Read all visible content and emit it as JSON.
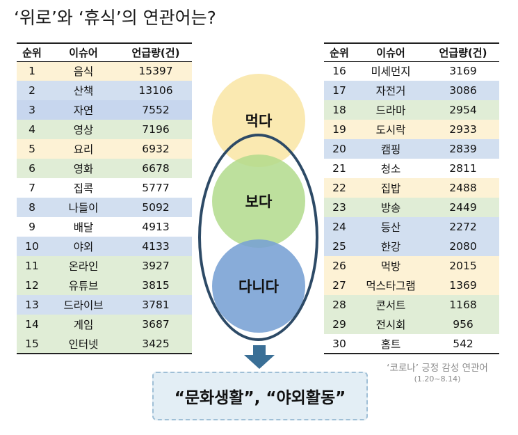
{
  "title": "‘위로’와 ‘휴식’의 연관어는?",
  "table_headers": {
    "rank": "순위",
    "issue": "이슈어",
    "mentions": "언급량(건)"
  },
  "left_rows": [
    {
      "rank": "1",
      "issue": "음식",
      "mentions": "15397",
      "color": "#fdf2d5"
    },
    {
      "rank": "2",
      "issue": "산책",
      "mentions": "13106",
      "color": "#d2dff0"
    },
    {
      "rank": "3",
      "issue": "자연",
      "mentions": "7552",
      "color": "#c7d6ee"
    },
    {
      "rank": "4",
      "issue": "영상",
      "mentions": "7196",
      "color": "#e0edd6"
    },
    {
      "rank": "5",
      "issue": "요리",
      "mentions": "6932",
      "color": "#fdf2d5"
    },
    {
      "rank": "6",
      "issue": "영화",
      "mentions": "6678",
      "color": "#e0edd6"
    },
    {
      "rank": "7",
      "issue": "집콕",
      "mentions": "5777",
      "color": "#ffffff"
    },
    {
      "rank": "8",
      "issue": "나들이",
      "mentions": "5092",
      "color": "#d2dff0"
    },
    {
      "rank": "9",
      "issue": "배달",
      "mentions": "4913",
      "color": "#ffffff"
    },
    {
      "rank": "10",
      "issue": "야외",
      "mentions": "4133",
      "color": "#d2dff0"
    },
    {
      "rank": "11",
      "issue": "온라인",
      "mentions": "3927",
      "color": "#e0edd6"
    },
    {
      "rank": "12",
      "issue": "유튜브",
      "mentions": "3815",
      "color": "#e0edd6"
    },
    {
      "rank": "13",
      "issue": "드라이브",
      "mentions": "3781",
      "color": "#d2dff0"
    },
    {
      "rank": "14",
      "issue": "게임",
      "mentions": "3687",
      "color": "#e0edd6"
    },
    {
      "rank": "15",
      "issue": "인터넷",
      "mentions": "3425",
      "color": "#e0edd6"
    }
  ],
  "right_rows": [
    {
      "rank": "16",
      "issue": "미세먼지",
      "mentions": "3169",
      "color": "#ffffff"
    },
    {
      "rank": "17",
      "issue": "자전거",
      "mentions": "3086",
      "color": "#d2dff0"
    },
    {
      "rank": "18",
      "issue": "드라마",
      "mentions": "2954",
      "color": "#e0edd6"
    },
    {
      "rank": "19",
      "issue": "도시락",
      "mentions": "2933",
      "color": "#fdf2d5"
    },
    {
      "rank": "20",
      "issue": "캠핑",
      "mentions": "2839",
      "color": "#d2dff0"
    },
    {
      "rank": "21",
      "issue": "청소",
      "mentions": "2811",
      "color": "#ffffff"
    },
    {
      "rank": "22",
      "issue": "집밥",
      "mentions": "2488",
      "color": "#fdf2d5"
    },
    {
      "rank": "23",
      "issue": "방송",
      "mentions": "2449",
      "color": "#e0edd6"
    },
    {
      "rank": "24",
      "issue": "등산",
      "mentions": "2272",
      "color": "#d2dff0"
    },
    {
      "rank": "25",
      "issue": "한강",
      "mentions": "2080",
      "color": "#d2dff0"
    },
    {
      "rank": "26",
      "issue": "먹방",
      "mentions": "2015",
      "color": "#fdf2d5"
    },
    {
      "rank": "27",
      "issue": "먹스타그램",
      "mentions": "1369",
      "color": "#fdf2d5"
    },
    {
      "rank": "28",
      "issue": "콘서트",
      "mentions": "1168",
      "color": "#e0edd6"
    },
    {
      "rank": "29",
      "issue": "전시회",
      "mentions": "956",
      "color": "#e0edd6"
    },
    {
      "rank": "30",
      "issue": "홈트",
      "mentions": "542",
      "color": "#ffffff"
    }
  ],
  "circles": {
    "eat": "먹다",
    "see": "보다",
    "go": "다니다"
  },
  "result_text": "“문화생활”, “야외활동”",
  "caption": {
    "line1": "‘코로나’ 긍정 감성 연관어",
    "line2": "(1.20~8.14)"
  },
  "colors": {
    "ellipse_border": "#2d4a66",
    "arrow": "#3a6f96"
  }
}
